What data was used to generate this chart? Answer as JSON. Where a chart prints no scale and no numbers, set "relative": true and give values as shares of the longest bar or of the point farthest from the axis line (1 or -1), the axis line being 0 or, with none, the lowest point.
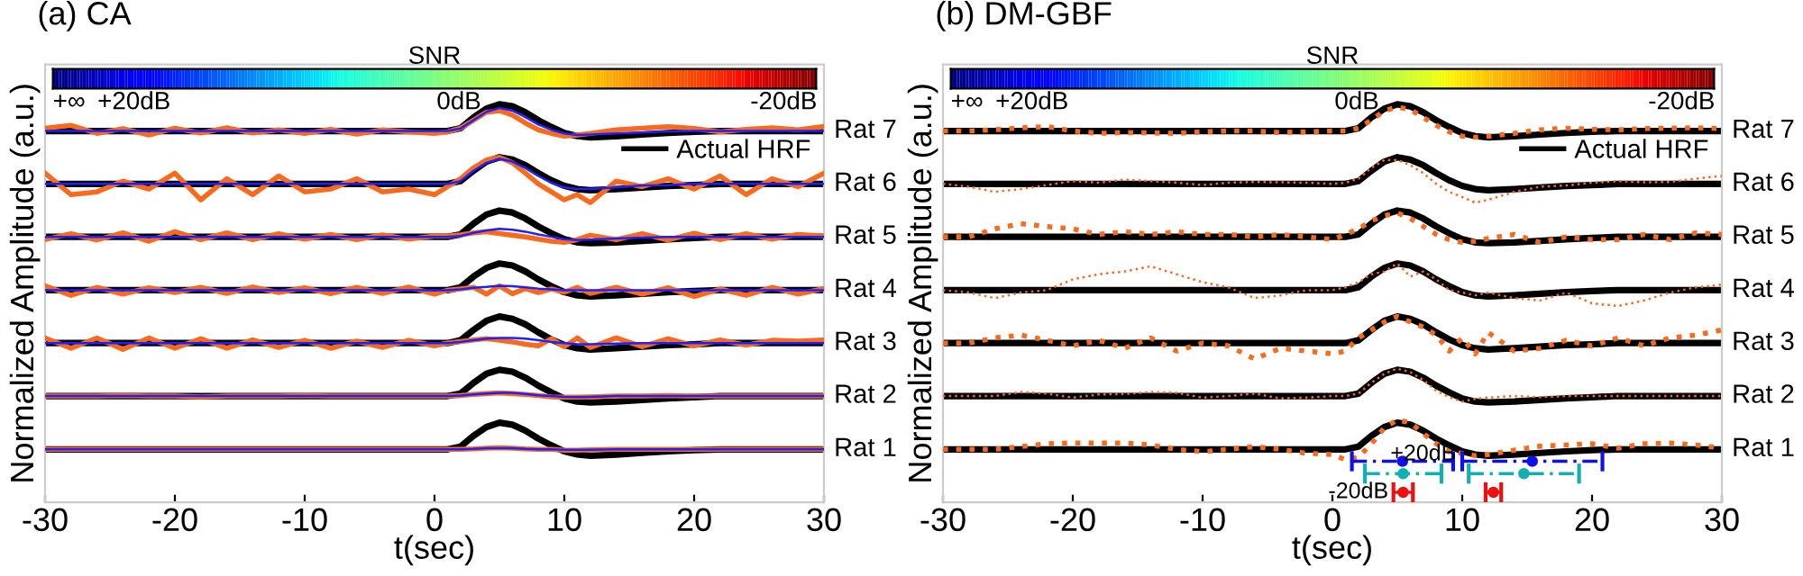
{
  "chart_data": [
    {
      "type": "line",
      "title": "(a) CA",
      "xlabel": "t(sec)",
      "ylabel": "Normalized Amplitude (a.u.)",
      "clabel": "SNR",
      "clim": [
        25,
        -22
      ],
      "cticks": [
        {
          "value": 25,
          "label": "+∞"
        },
        {
          "value": 20,
          "label": "+20dB"
        },
        {
          "value": 0,
          "label": "0dB"
        },
        {
          "value": -20,
          "label": "-20dB"
        }
      ],
      "xlim": [
        -30,
        30
      ],
      "xticks": [
        -30,
        -20,
        -10,
        0,
        10,
        20,
        30
      ],
      "relative": true,
      "legend": "top right",
      "grid": false,
      "marker": "none",
      "line_style": "solid",
      "annotations": [
        {
          "text": "Rat 1",
          "x": 30,
          "y": 0.133
        },
        {
          "text": "Rat 2",
          "x": 30,
          "y": 0.267
        },
        {
          "text": "Rat 3",
          "x": 30,
          "y": 0.4
        },
        {
          "text": "Rat 4",
          "x": 30,
          "y": 0.533
        },
        {
          "text": "Rat 5",
          "x": 30,
          "y": 0.667
        },
        {
          "text": "Rat 6",
          "x": 30,
          "y": 0.8
        },
        {
          "text": "Rat 7",
          "x": 30,
          "y": 0.933
        }
      ],
      "x": [
        -30,
        -28,
        -26,
        -24,
        -22,
        -20,
        -18,
        -16,
        -14,
        -12,
        -10,
        -8,
        -6,
        -4,
        -2,
        0,
        1,
        2,
        3,
        4,
        5,
        6,
        7,
        8,
        9,
        10,
        11,
        12,
        14,
        16,
        18,
        20,
        22,
        24,
        26,
        28,
        30
      ],
      "series": [
        {
          "color": "#f86a1e",
          "values": [
            0.133,
            0.133,
            0.133,
            0.133,
            0.133,
            0.133,
            0.133,
            0.133,
            0.133,
            0.133,
            0.133,
            0.133,
            0.133,
            0.133,
            0.133,
            0.133,
            0.133,
            0.133,
            0.134,
            0.136,
            0.137,
            0.136,
            0.134,
            0.133,
            0.133,
            0.131,
            0.131,
            0.132,
            0.133,
            0.133,
            0.133,
            0.133,
            0.133,
            0.133,
            0.133,
            0.133,
            0.133
          ]
        },
        {
          "color": "#2020ff",
          "values": [
            0.133,
            0.133,
            0.133,
            0.133,
            0.133,
            0.133,
            0.133,
            0.133,
            0.133,
            0.133,
            0.133,
            0.133,
            0.133,
            0.133,
            0.133,
            0.133,
            0.133,
            0.133,
            0.134,
            0.136,
            0.136,
            0.136,
            0.134,
            0.133,
            0.133,
            0.132,
            0.132,
            0.132,
            0.133,
            0.133,
            0.133,
            0.133,
            0.133,
            0.133,
            0.133,
            0.133,
            0.133
          ]
        },
        {
          "color": "#f86a1e",
          "values": [
            0.267,
            0.267,
            0.267,
            0.268,
            0.267,
            0.267,
            0.265,
            0.267,
            0.267,
            0.267,
            0.268,
            0.267,
            0.267,
            0.267,
            0.267,
            0.267,
            0.267,
            0.268,
            0.271,
            0.273,
            0.275,
            0.273,
            0.271,
            0.268,
            0.265,
            0.264,
            0.264,
            0.265,
            0.267,
            0.267,
            0.268,
            0.267,
            0.267,
            0.267,
            0.267,
            0.267,
            0.267
          ]
        },
        {
          "color": "#2020ff",
          "values": [
            0.267,
            0.267,
            0.267,
            0.267,
            0.267,
            0.267,
            0.267,
            0.267,
            0.267,
            0.267,
            0.267,
            0.267,
            0.267,
            0.267,
            0.267,
            0.267,
            0.267,
            0.268,
            0.271,
            0.273,
            0.275,
            0.275,
            0.272,
            0.269,
            0.267,
            0.265,
            0.264,
            0.265,
            0.267,
            0.267,
            0.267,
            0.267,
            0.267,
            0.267,
            0.267,
            0.267,
            0.267
          ]
        },
        {
          "color": "#f86a1e",
          "values": [
            0.413,
            0.387,
            0.413,
            0.384,
            0.413,
            0.387,
            0.411,
            0.387,
            0.408,
            0.389,
            0.407,
            0.387,
            0.405,
            0.389,
            0.407,
            0.393,
            0.4,
            0.404,
            0.408,
            0.411,
            0.407,
            0.403,
            0.397,
            0.393,
            0.411,
            0.391,
            0.413,
            0.389,
            0.413,
            0.391,
            0.411,
            0.393,
            0.408,
            0.395,
            0.407,
            0.405,
            0.408
          ]
        },
        {
          "color": "#2020ff",
          "values": [
            0.4,
            0.4,
            0.4,
            0.4,
            0.4,
            0.4,
            0.4,
            0.4,
            0.4,
            0.4,
            0.4,
            0.4,
            0.4,
            0.4,
            0.4,
            0.4,
            0.4,
            0.403,
            0.407,
            0.411,
            0.413,
            0.413,
            0.411,
            0.407,
            0.403,
            0.4,
            0.397,
            0.397,
            0.399,
            0.4,
            0.4,
            0.4,
            0.4,
            0.4,
            0.4,
            0.4,
            0.4
          ]
        },
        {
          "color": "#f86a1e",
          "values": [
            0.544,
            0.52,
            0.54,
            0.523,
            0.539,
            0.527,
            0.54,
            0.525,
            0.541,
            0.527,
            0.539,
            0.524,
            0.54,
            0.525,
            0.541,
            0.523,
            0.533,
            0.536,
            0.54,
            0.523,
            0.544,
            0.524,
            0.537,
            0.527,
            0.536,
            0.528,
            0.54,
            0.525,
            0.54,
            0.523,
            0.539,
            0.517,
            0.536,
            0.52,
            0.54,
            0.523,
            0.537
          ]
        },
        {
          "color": "#2020ff",
          "values": [
            0.533,
            0.533,
            0.533,
            0.533,
            0.533,
            0.533,
            0.533,
            0.533,
            0.533,
            0.533,
            0.533,
            0.533,
            0.533,
            0.533,
            0.533,
            0.533,
            0.533,
            0.535,
            0.539,
            0.541,
            0.544,
            0.543,
            0.54,
            0.537,
            0.535,
            0.533,
            0.533,
            0.533,
            0.533,
            0.533,
            0.533,
            0.533,
            0.533,
            0.533,
            0.533,
            0.533,
            0.533
          ]
        },
        {
          "color": "#f86a1e",
          "values": [
            0.66,
            0.675,
            0.659,
            0.677,
            0.656,
            0.68,
            0.66,
            0.677,
            0.66,
            0.675,
            0.661,
            0.673,
            0.66,
            0.672,
            0.661,
            0.669,
            0.669,
            0.672,
            0.677,
            0.68,
            0.675,
            0.671,
            0.667,
            0.661,
            0.656,
            0.653,
            0.66,
            0.671,
            0.66,
            0.675,
            0.659,
            0.676,
            0.66,
            0.675,
            0.661,
            0.673,
            0.669
          ]
        },
        {
          "color": "#2020ff",
          "values": [
            0.667,
            0.667,
            0.667,
            0.667,
            0.667,
            0.667,
            0.667,
            0.667,
            0.667,
            0.667,
            0.667,
            0.667,
            0.667,
            0.667,
            0.667,
            0.667,
            0.667,
            0.669,
            0.677,
            0.683,
            0.687,
            0.685,
            0.68,
            0.673,
            0.667,
            0.661,
            0.659,
            0.66,
            0.663,
            0.665,
            0.667,
            0.667,
            0.667,
            0.667,
            0.667,
            0.667,
            0.667
          ]
        },
        {
          "color": "#f86a1e",
          "values": [
            0.827,
            0.773,
            0.78,
            0.807,
            0.787,
            0.827,
            0.76,
            0.813,
            0.773,
            0.82,
            0.78,
            0.787,
            0.813,
            0.78,
            0.787,
            0.773,
            0.793,
            0.813,
            0.84,
            0.86,
            0.867,
            0.853,
            0.827,
            0.8,
            0.78,
            0.76,
            0.773,
            0.753,
            0.807,
            0.793,
            0.813,
            0.787,
            0.82,
            0.773,
            0.813,
            0.793,
            0.827
          ]
        },
        {
          "color": "#2020ff",
          "values": [
            0.8,
            0.8,
            0.8,
            0.8,
            0.8,
            0.8,
            0.8,
            0.8,
            0.8,
            0.8,
            0.8,
            0.8,
            0.8,
            0.8,
            0.8,
            0.8,
            0.8,
            0.807,
            0.833,
            0.853,
            0.863,
            0.856,
            0.84,
            0.82,
            0.803,
            0.791,
            0.787,
            0.787,
            0.791,
            0.796,
            0.797,
            0.8,
            0.8,
            0.8,
            0.8,
            0.8,
            0.8
          ]
        },
        {
          "color": "#f86a1e",
          "values": [
            0.94,
            0.947,
            0.927,
            0.939,
            0.923,
            0.94,
            0.928,
            0.941,
            0.928,
            0.936,
            0.927,
            0.937,
            0.925,
            0.936,
            0.931,
            0.927,
            0.931,
            0.94,
            0.96,
            0.98,
            0.984,
            0.973,
            0.953,
            0.936,
            0.927,
            0.92,
            0.923,
            0.927,
            0.936,
            0.94,
            0.944,
            0.939,
            0.931,
            0.937,
            0.941,
            0.936,
            0.944
          ]
        },
        {
          "color": "#2020ff",
          "values": [
            0.933,
            0.933,
            0.933,
            0.933,
            0.933,
            0.933,
            0.933,
            0.933,
            0.933,
            0.933,
            0.933,
            0.933,
            0.933,
            0.933,
            0.933,
            0.933,
            0.933,
            0.939,
            0.96,
            0.981,
            0.991,
            0.984,
            0.968,
            0.949,
            0.936,
            0.927,
            0.923,
            0.924,
            0.927,
            0.929,
            0.932,
            0.933,
            0.933,
            0.933,
            0.933,
            0.933,
            0.933
          ]
        },
        {
          "name": "Actual HRF",
          "color": "#000000",
          "values": [
            0.133,
            0.133,
            0.133,
            0.133,
            0.133,
            0.133,
            0.133,
            0.133,
            0.133,
            0.133,
            0.133,
            0.133,
            0.133,
            0.133,
            0.133,
            0.133,
            0.133,
            0.14,
            0.167,
            0.189,
            0.2,
            0.195,
            0.18,
            0.16,
            0.143,
            0.128,
            0.12,
            0.117,
            0.12,
            0.124,
            0.128,
            0.131,
            0.133,
            0.133,
            0.133,
            0.133,
            0.133
          ]
        },
        {
          "color": "#000000",
          "values": [
            0.267,
            0.267,
            0.267,
            0.267,
            0.267,
            0.267,
            0.267,
            0.267,
            0.267,
            0.267,
            0.267,
            0.267,
            0.267,
            0.267,
            0.267,
            0.267,
            0.267,
            0.273,
            0.3,
            0.323,
            0.333,
            0.328,
            0.313,
            0.293,
            0.276,
            0.261,
            0.253,
            0.251,
            0.253,
            0.257,
            0.261,
            0.264,
            0.267,
            0.267,
            0.267,
            0.267,
            0.267
          ]
        },
        {
          "color": "#000000",
          "values": [
            0.4,
            0.4,
            0.4,
            0.4,
            0.4,
            0.4,
            0.4,
            0.4,
            0.4,
            0.4,
            0.4,
            0.4,
            0.4,
            0.4,
            0.4,
            0.4,
            0.4,
            0.407,
            0.433,
            0.456,
            0.467,
            0.461,
            0.447,
            0.427,
            0.409,
            0.395,
            0.387,
            0.384,
            0.387,
            0.391,
            0.395,
            0.397,
            0.4,
            0.4,
            0.4,
            0.4,
            0.4
          ]
        },
        {
          "color": "#000000",
          "values": [
            0.533,
            0.533,
            0.533,
            0.533,
            0.533,
            0.533,
            0.533,
            0.533,
            0.533,
            0.533,
            0.533,
            0.533,
            0.533,
            0.533,
            0.533,
            0.533,
            0.533,
            0.54,
            0.567,
            0.589,
            0.6,
            0.595,
            0.58,
            0.56,
            0.543,
            0.528,
            0.52,
            0.517,
            0.52,
            0.524,
            0.528,
            0.531,
            0.533,
            0.533,
            0.533,
            0.533,
            0.533
          ]
        },
        {
          "color": "#000000",
          "values": [
            0.667,
            0.667,
            0.667,
            0.667,
            0.667,
            0.667,
            0.667,
            0.667,
            0.667,
            0.667,
            0.667,
            0.667,
            0.667,
            0.667,
            0.667,
            0.667,
            0.667,
            0.673,
            0.7,
            0.723,
            0.733,
            0.728,
            0.713,
            0.693,
            0.676,
            0.661,
            0.653,
            0.651,
            0.653,
            0.657,
            0.661,
            0.664,
            0.667,
            0.667,
            0.667,
            0.667,
            0.667
          ]
        },
        {
          "color": "#000000",
          "values": [
            0.8,
            0.8,
            0.8,
            0.8,
            0.8,
            0.8,
            0.8,
            0.8,
            0.8,
            0.8,
            0.8,
            0.8,
            0.8,
            0.8,
            0.8,
            0.8,
            0.8,
            0.807,
            0.833,
            0.856,
            0.867,
            0.861,
            0.847,
            0.827,
            0.809,
            0.795,
            0.787,
            0.784,
            0.787,
            0.791,
            0.795,
            0.797,
            0.8,
            0.8,
            0.8,
            0.8,
            0.8
          ]
        },
        {
          "color": "#000000",
          "values": [
            0.933,
            0.933,
            0.933,
            0.933,
            0.933,
            0.933,
            0.933,
            0.933,
            0.933,
            0.933,
            0.933,
            0.933,
            0.933,
            0.933,
            0.933,
            0.933,
            0.933,
            0.94,
            0.967,
            0.989,
            1,
            0.995,
            0.98,
            0.96,
            0.943,
            0.928,
            0.92,
            0.917,
            0.92,
            0.924,
            0.928,
            0.931,
            0.933,
            0.933,
            0.933,
            0.933,
            0.933
          ]
        }
      ]
    },
    {
      "type": "line",
      "title": "(b) DM-GBF",
      "xlabel": "t(sec)",
      "ylabel": "Normalized Amplitude (a.u.)",
      "clabel": "SNR",
      "clim": [
        25,
        -22
      ],
      "cticks": [
        {
          "value": 25,
          "label": "+∞"
        },
        {
          "value": 20,
          "label": "+20dB"
        },
        {
          "value": 0,
          "label": "0dB"
        },
        {
          "value": -20,
          "label": "-20dB"
        }
      ],
      "xlim": [
        -30,
        30
      ],
      "xticks": [
        -30,
        -20,
        -10,
        0,
        10,
        20,
        30
      ],
      "relative": true,
      "legend": "top right",
      "grid": false,
      "marker": "none",
      "line_style": "solid",
      "annotations": [
        {
          "text": "Rat 1",
          "x": 30,
          "y": 0.133
        },
        {
          "text": "Rat 2",
          "x": 30,
          "y": 0.267
        },
        {
          "text": "Rat 3",
          "x": 30,
          "y": 0.4
        },
        {
          "text": "Rat 4",
          "x": 30,
          "y": 0.533
        },
        {
          "text": "Rat 5",
          "x": 30,
          "y": 0.667
        },
        {
          "text": "Rat 6",
          "x": 30,
          "y": 0.8
        },
        {
          "text": "Rat 7",
          "x": 30,
          "y": 0.933
        },
        {
          "text": "+20dB",
          "x": 7,
          "y": 0.12
        },
        {
          "text": "-20dB",
          "x": 4.7,
          "y": 0.025
        }
      ],
      "x": [
        -30,
        -28,
        -26,
        -24,
        -22,
        -20,
        -18,
        -16,
        -14,
        -12,
        -10,
        -8,
        -6,
        -4,
        -2,
        0,
        1,
        2,
        3,
        4,
        5,
        6,
        7,
        8,
        9,
        10,
        11,
        12,
        14,
        16,
        18,
        20,
        22,
        24,
        26,
        28,
        30
      ],
      "series": [
        {
          "color": "#f86a1e",
          "line_style": "dotted",
          "values": [
            0.133,
            0.133,
            0.133,
            0.14,
            0.147,
            0.149,
            0.149,
            0.149,
            0.144,
            0.133,
            0.127,
            0.133,
            0.14,
            0.133,
            0.123,
            0.12,
            0.107,
            0.113,
            0.147,
            0.187,
            0.207,
            0.2,
            0.173,
            0.147,
            0.127,
            0.123,
            0.117,
            0.12,
            0.131,
            0.141,
            0.144,
            0.147,
            0.136,
            0.147,
            0.149,
            0.144,
            0.136
          ]
        },
        {
          "color": "#f86a1e",
          "line_style": "dotted",
          "values": [
            0.267,
            0.267,
            0.267,
            0.277,
            0.273,
            0.263,
            0.271,
            0.272,
            0.277,
            0.275,
            0.263,
            0.267,
            0.273,
            0.261,
            0.263,
            0.267,
            0.267,
            0.273,
            0.3,
            0.323,
            0.336,
            0.327,
            0.307,
            0.28,
            0.264,
            0.253,
            0.26,
            0.263,
            0.267,
            0.264,
            0.267,
            0.267,
            0.267,
            0.267,
            0.267,
            0.267,
            0.267
          ]
        },
        {
          "color": "#f86a1e",
          "line_style": "dotted",
          "values": [
            0.4,
            0.4,
            0.413,
            0.42,
            0.407,
            0.393,
            0.407,
            0.387,
            0.413,
            0.38,
            0.4,
            0.393,
            0.36,
            0.387,
            0.38,
            0.373,
            0.38,
            0.413,
            0.433,
            0.453,
            0.467,
            0.453,
            0.44,
            0.42,
            0.38,
            0.413,
            0.373,
            0.427,
            0.38,
            0.387,
            0.407,
            0.393,
            0.413,
            0.393,
            0.413,
            0.42,
            0.433
          ]
        },
        {
          "color": "#f86a1e",
          "line_style": "dotted",
          "values": [
            0.533,
            0.527,
            0.513,
            0.527,
            0.533,
            0.56,
            0.573,
            0.58,
            0.593,
            0.573,
            0.553,
            0.54,
            0.513,
            0.52,
            0.533,
            0.533,
            0.54,
            0.553,
            0.573,
            0.58,
            0.6,
            0.567,
            0.58,
            0.56,
            0.533,
            0.527,
            0.52,
            0.527,
            0.513,
            0.507,
            0.527,
            0.5,
            0.493,
            0.507,
            0.527,
            0.54,
            0.547
          ]
        },
        {
          "color": "#f86a1e",
          "line_style": "dotted",
          "values": [
            0.667,
            0.667,
            0.687,
            0.7,
            0.693,
            0.687,
            0.673,
            0.68,
            0.673,
            0.68,
            0.673,
            0.673,
            0.667,
            0.673,
            0.667,
            0.66,
            0.673,
            0.687,
            0.707,
            0.72,
            0.727,
            0.713,
            0.693,
            0.673,
            0.66,
            0.653,
            0.656,
            0.663,
            0.673,
            0.653,
            0.667,
            0.66,
            0.66,
            0.673,
            0.66,
            0.677,
            0.673
          ]
        },
        {
          "color": "#f86a1e",
          "line_style": "dotted",
          "values": [
            0.8,
            0.793,
            0.78,
            0.787,
            0.797,
            0.807,
            0.803,
            0.811,
            0.807,
            0.803,
            0.797,
            0.803,
            0.805,
            0.804,
            0.803,
            0.8,
            0.803,
            0.813,
            0.84,
            0.86,
            0.86,
            0.847,
            0.827,
            0.8,
            0.78,
            0.767,
            0.753,
            0.76,
            0.78,
            0.793,
            0.796,
            0.803,
            0.807,
            0.804,
            0.805,
            0.813,
            0.82
          ]
        },
        {
          "color": "#f86a1e",
          "line_style": "dotted",
          "values": [
            0.933,
            0.933,
            0.936,
            0.941,
            0.944,
            0.933,
            0.927,
            0.929,
            0.928,
            0.927,
            0.931,
            0.933,
            0.933,
            0.929,
            0.931,
            0.933,
            0.933,
            0.94,
            0.96,
            0.984,
            0.993,
            0.987,
            0.967,
            0.947,
            0.931,
            0.92,
            0.917,
            0.92,
            0.927,
            0.936,
            0.94,
            0.937,
            0.936,
            0.939,
            0.94,
            0.941,
            0.939
          ]
        },
        {
          "name": "Actual HRF",
          "color": "#000000",
          "values": [
            0.133,
            0.133,
            0.133,
            0.133,
            0.133,
            0.133,
            0.133,
            0.133,
            0.133,
            0.133,
            0.133,
            0.133,
            0.133,
            0.133,
            0.133,
            0.133,
            0.133,
            0.14,
            0.167,
            0.189,
            0.2,
            0.195,
            0.18,
            0.16,
            0.143,
            0.128,
            0.12,
            0.117,
            0.12,
            0.124,
            0.128,
            0.131,
            0.133,
            0.133,
            0.133,
            0.133,
            0.133
          ]
        },
        {
          "color": "#000000",
          "values": [
            0.267,
            0.267,
            0.267,
            0.267,
            0.267,
            0.267,
            0.267,
            0.267,
            0.267,
            0.267,
            0.267,
            0.267,
            0.267,
            0.267,
            0.267,
            0.267,
            0.267,
            0.273,
            0.3,
            0.323,
            0.333,
            0.328,
            0.313,
            0.293,
            0.276,
            0.261,
            0.253,
            0.251,
            0.253,
            0.257,
            0.261,
            0.264,
            0.267,
            0.267,
            0.267,
            0.267,
            0.267
          ]
        },
        {
          "color": "#000000",
          "values": [
            0.4,
            0.4,
            0.4,
            0.4,
            0.4,
            0.4,
            0.4,
            0.4,
            0.4,
            0.4,
            0.4,
            0.4,
            0.4,
            0.4,
            0.4,
            0.4,
            0.4,
            0.407,
            0.433,
            0.456,
            0.467,
            0.461,
            0.447,
            0.427,
            0.409,
            0.395,
            0.387,
            0.384,
            0.387,
            0.391,
            0.395,
            0.397,
            0.4,
            0.4,
            0.4,
            0.4,
            0.4
          ]
        },
        {
          "color": "#000000",
          "values": [
            0.533,
            0.533,
            0.533,
            0.533,
            0.533,
            0.533,
            0.533,
            0.533,
            0.533,
            0.533,
            0.533,
            0.533,
            0.533,
            0.533,
            0.533,
            0.533,
            0.533,
            0.54,
            0.567,
            0.589,
            0.6,
            0.595,
            0.58,
            0.56,
            0.543,
            0.528,
            0.52,
            0.517,
            0.52,
            0.524,
            0.528,
            0.531,
            0.533,
            0.533,
            0.533,
            0.533,
            0.533
          ]
        },
        {
          "color": "#000000",
          "values": [
            0.667,
            0.667,
            0.667,
            0.667,
            0.667,
            0.667,
            0.667,
            0.667,
            0.667,
            0.667,
            0.667,
            0.667,
            0.667,
            0.667,
            0.667,
            0.667,
            0.667,
            0.673,
            0.7,
            0.723,
            0.733,
            0.728,
            0.713,
            0.693,
            0.676,
            0.661,
            0.653,
            0.651,
            0.653,
            0.657,
            0.661,
            0.664,
            0.667,
            0.667,
            0.667,
            0.667,
            0.667
          ]
        },
        {
          "color": "#000000",
          "values": [
            0.8,
            0.8,
            0.8,
            0.8,
            0.8,
            0.8,
            0.8,
            0.8,
            0.8,
            0.8,
            0.8,
            0.8,
            0.8,
            0.8,
            0.8,
            0.8,
            0.8,
            0.807,
            0.833,
            0.856,
            0.867,
            0.861,
            0.847,
            0.827,
            0.809,
            0.795,
            0.787,
            0.784,
            0.787,
            0.791,
            0.795,
            0.797,
            0.8,
            0.8,
            0.8,
            0.8,
            0.8
          ]
        },
        {
          "color": "#000000",
          "values": [
            0.933,
            0.933,
            0.933,
            0.933,
            0.933,
            0.933,
            0.933,
            0.933,
            0.933,
            0.933,
            0.933,
            0.933,
            0.933,
            0.933,
            0.933,
            0.933,
            0.933,
            0.94,
            0.967,
            0.989,
            1,
            0.995,
            0.98,
            0.96,
            0.943,
            0.928,
            0.92,
            0.917,
            0.92,
            0.924,
            0.928,
            0.931,
            0.933,
            0.933,
            0.933,
            0.933,
            0.933
          ]
        },
        {
          "type": "scatter",
          "color": "#1010ee",
          "line_style": "dashed",
          "marker": "circle",
          "x": [
            5.4,
            15.4
          ],
          "values": [
            0.103,
            0.103
          ],
          "xerrors": [
            [
              1.5,
              9.3
            ],
            [
              10,
              20.8
            ]
          ]
        },
        {
          "type": "scatter",
          "color": "#10b0b0",
          "line_style": "dashed",
          "marker": "circle",
          "x": [
            5.45,
            14.75
          ],
          "values": [
            0.072,
            0.072
          ],
          "xerrors": [
            [
              2.5,
              8.4
            ],
            [
              10.5,
              19
            ]
          ]
        },
        {
          "type": "scatter",
          "color": "#ee1010",
          "line_style": "solid",
          "marker": "circle",
          "x": [
            5.45,
            12.4
          ],
          "values": [
            0.025,
            0.025
          ],
          "xerrors": [
            [
              4.7,
              6.2
            ],
            [
              11.8,
              13
            ]
          ]
        }
      ]
    }
  ]
}
